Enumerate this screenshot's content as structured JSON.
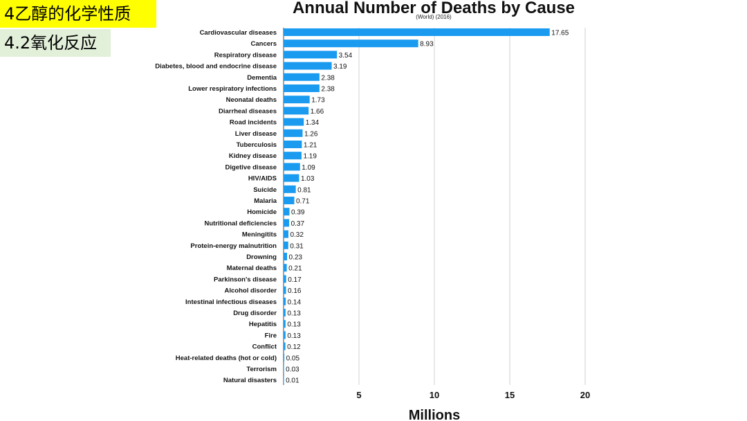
{
  "slide": {
    "tag_top": "4乙醇的化学性质",
    "tag_bottom": "4.2氧化反应",
    "tag_top_color": "#ffff00",
    "tag_bottom_color": "#e2efd9"
  },
  "chart_data": {
    "type": "bar",
    "orientation": "horizontal",
    "title": "Annual Number of Deaths by Cause",
    "subtitle": "(World) (2016)",
    "xlabel": "Millions",
    "ylabel": "",
    "xlim": [
      0,
      20
    ],
    "xticks": [
      5,
      10,
      15,
      20
    ],
    "grid": true,
    "bar_color": "#1a9bf0",
    "categories": [
      "Cardiovascular diseases",
      "Cancers",
      "Respiratory disease",
      "Diabetes, blood and endocrine disease",
      "Dementia",
      "Lower respiratory infections",
      "Neonatal deaths",
      "Diarrheal diseases",
      "Road incidents",
      "Liver disease",
      "Tuberculosis",
      "Kidney disease",
      "Digetive disease",
      "HIV/AIDS",
      "Suicide",
      "Malaria",
      "Homicide",
      "Nutritional deficiencies",
      "Meningitits",
      "Protein-energy malnutrition",
      "Drowning",
      "Maternal deaths",
      "Parkinson's disease",
      "Alcohol disorder",
      "Intestinal infectious diseases",
      "Drug disorder",
      "Hepatitis",
      "Fire",
      "Conflict",
      "Heat-related deaths (hot or cold)",
      "Terrorism",
      "Natural disasters"
    ],
    "values": [
      17.65,
      8.93,
      3.54,
      3.19,
      2.38,
      2.38,
      1.73,
      1.66,
      1.34,
      1.26,
      1.21,
      1.19,
      1.09,
      1.03,
      0.81,
      0.71,
      0.39,
      0.37,
      0.32,
      0.31,
      0.23,
      0.21,
      0.17,
      0.16,
      0.14,
      0.13,
      0.13,
      0.13,
      0.12,
      0.05,
      0.03,
      0.01
    ],
    "value_labels": [
      "17.65",
      "8.93",
      "3.54",
      "3.19",
      "2.38",
      "2.38",
      "1.73",
      "1.66",
      "1.34",
      "1.26",
      "1.21",
      "1.19",
      "1.09",
      "1.03",
      "0.81",
      "0.71",
      "0.39",
      "0.37",
      "0.32",
      "0.31",
      "0.23",
      "0.21",
      "0.17",
      "0.16",
      "0.14",
      "0.13",
      "0.13",
      "0.13",
      "0.12",
      "0.05",
      "0.03",
      "0.01"
    ]
  }
}
